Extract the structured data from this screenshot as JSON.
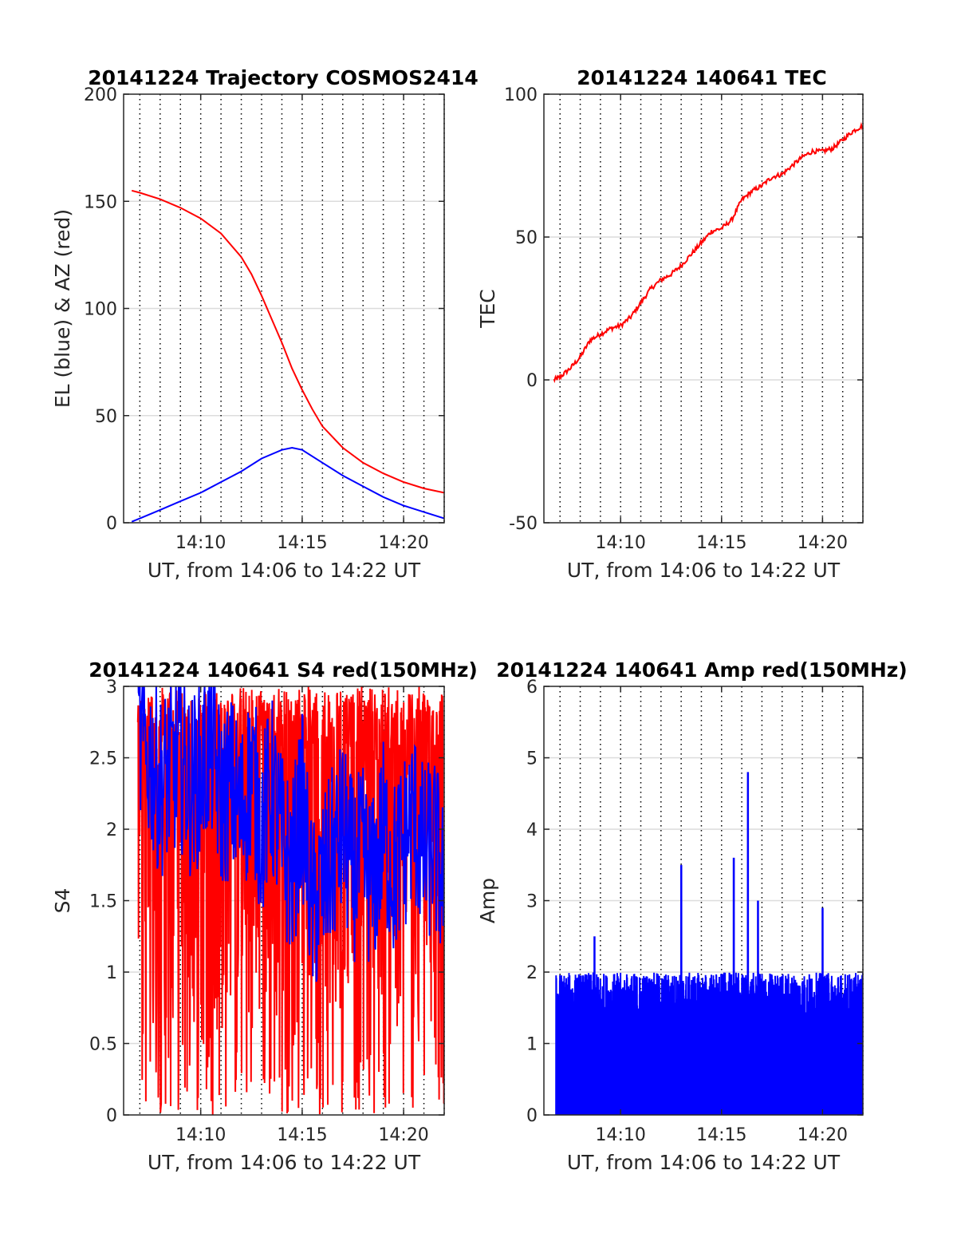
{
  "chart_data": [
    {
      "type": "line",
      "title": "20141224 Trajectory COSMOS2414",
      "xlabel": "UT, from 14:06 to 14:22 UT",
      "ylabel": "EL (blue) & AZ (red)",
      "xlim_minutes": [
        846.2,
        862.0
      ],
      "ylim": [
        0,
        200
      ],
      "yticks": [
        0,
        50,
        100,
        150,
        200
      ],
      "xticks": [
        {
          "minute": 850,
          "label": "14:10"
        },
        {
          "minute": 855,
          "label": "14:15"
        },
        {
          "minute": 860,
          "label": "14:20"
        }
      ],
      "grid": "y solid, x dotted every minute",
      "series": [
        {
          "color": "#ff0000",
          "x": [
            846.6,
            847,
            848,
            849,
            850,
            851,
            852,
            852.5,
            853,
            853.5,
            854,
            854.5,
            855,
            855.5,
            856,
            857,
            858,
            859,
            860,
            861,
            862
          ],
          "y": [
            155,
            154,
            151,
            147,
            142,
            135,
            124,
            116,
            106,
            95,
            84,
            72,
            62,
            53,
            45,
            35,
            28,
            23,
            19,
            16,
            14
          ]
        },
        {
          "color": "#0000ff",
          "x": [
            846.6,
            847,
            848,
            849,
            850,
            851,
            852,
            853,
            854,
            854.5,
            855,
            856,
            857,
            858,
            859,
            860,
            861,
            862
          ],
          "y": [
            0.5,
            2,
            6,
            10,
            14,
            19,
            24,
            30,
            34,
            35,
            34,
            28,
            22,
            17,
            12,
            8,
            5,
            2
          ]
        }
      ]
    },
    {
      "type": "line",
      "title": "20141224 140641 TEC",
      "xlabel": "UT, from 14:06 to 14:22 UT",
      "ylabel": "TEC",
      "xlim_minutes": [
        846.2,
        862.0
      ],
      "ylim": [
        -50,
        100
      ],
      "yticks": [
        -50,
        0,
        50,
        100
      ],
      "xticks": [
        {
          "minute": 850,
          "label": "14:10"
        },
        {
          "minute": 855,
          "label": "14:15"
        },
        {
          "minute": 860,
          "label": "14:20"
        }
      ],
      "series": [
        {
          "color": "#ff0000",
          "x": [
            846.7,
            847,
            847.5,
            848,
            848.5,
            849,
            849.5,
            850,
            850.5,
            851,
            851.5,
            852,
            852.5,
            853,
            853.5,
            854,
            854.5,
            855,
            855.5,
            856,
            856.5,
            857,
            857.5,
            858,
            858.5,
            859,
            859.5,
            860,
            860.5,
            861,
            861.5,
            862
          ],
          "y": [
            0,
            1,
            4,
            8,
            14,
            16,
            18,
            19,
            22,
            27,
            32,
            35,
            37,
            40,
            44,
            48,
            52,
            53,
            56,
            63,
            66,
            68,
            71,
            72,
            75,
            78,
            80,
            80,
            81,
            84,
            87,
            89
          ]
        }
      ]
    },
    {
      "type": "line",
      "title": "20141224 140641 S4 red(150MHz)",
      "xlabel": "UT, from 14:06 to 14:22 UT",
      "ylabel": "S4",
      "xlim_minutes": [
        846.2,
        862.0
      ],
      "ylim": [
        0,
        3
      ],
      "yticks": [
        0,
        0.5,
        1,
        1.5,
        2,
        2.5,
        3
      ],
      "ytick_labels": [
        "0",
        "0.5",
        "1",
        "1.5",
        "2",
        "2.5",
        "3"
      ],
      "xticks": [
        {
          "minute": 850,
          "label": "14:10"
        },
        {
          "minute": 855,
          "label": "14:15"
        },
        {
          "minute": 860,
          "label": "14:20"
        }
      ],
      "series": [
        {
          "color": "#ff0000",
          "noise_envelope": {
            "x_start": 846.9,
            "x_end": 862.0,
            "range": [
              0,
              3
            ]
          }
        },
        {
          "color": "#0000ff",
          "x": [
            846.9,
            847.5,
            848,
            848.5,
            849,
            849.5,
            850,
            850.5,
            851,
            851.5,
            852,
            852.5,
            853,
            853.5,
            854,
            854.5,
            855,
            855.5,
            856,
            856.5,
            857,
            857.5,
            858,
            858.5,
            859,
            859.5,
            860,
            860.5,
            861,
            861.5,
            862
          ],
          "y": [
            2.6,
            2.5,
            2.3,
            2.4,
            2.5,
            2.3,
            2.4,
            2.6,
            2.2,
            2.3,
            2.1,
            2.4,
            2.0,
            2.3,
            1.9,
            1.7,
            2.2,
            1.4,
            1.6,
            1.8,
            2.0,
            1.7,
            1.8,
            1.6,
            2.0,
            1.7,
            1.9,
            2.1,
            1.8,
            1.9,
            1.6
          ]
        }
      ]
    },
    {
      "type": "bar",
      "title": "20141224 140641 Amp red(150MHz)",
      "xlabel": "UT, from 14:06 to 14:22 UT",
      "ylabel": "Amp",
      "xlim_minutes": [
        846.2,
        862.0
      ],
      "ylim": [
        0,
        6
      ],
      "yticks": [
        0,
        1,
        2,
        3,
        4,
        5,
        6
      ],
      "xticks": [
        {
          "minute": 850,
          "label": "14:10"
        },
        {
          "minute": 855,
          "label": "14:15"
        },
        {
          "minute": 860,
          "label": "14:20"
        }
      ],
      "series": [
        {
          "color": "#0000ff",
          "x_start": 846.8,
          "x_end": 862.0,
          "typical_peak": 1.9,
          "peaks": [
            {
              "x": 848.7,
              "y": 2.5
            },
            {
              "x": 853.0,
              "y": 3.5
            },
            {
              "x": 855.6,
              "y": 3.6
            },
            {
              "x": 856.3,
              "y": 4.8
            },
            {
              "x": 856.8,
              "y": 3.0
            },
            {
              "x": 860.0,
              "y": 2.9
            }
          ]
        }
      ]
    }
  ]
}
